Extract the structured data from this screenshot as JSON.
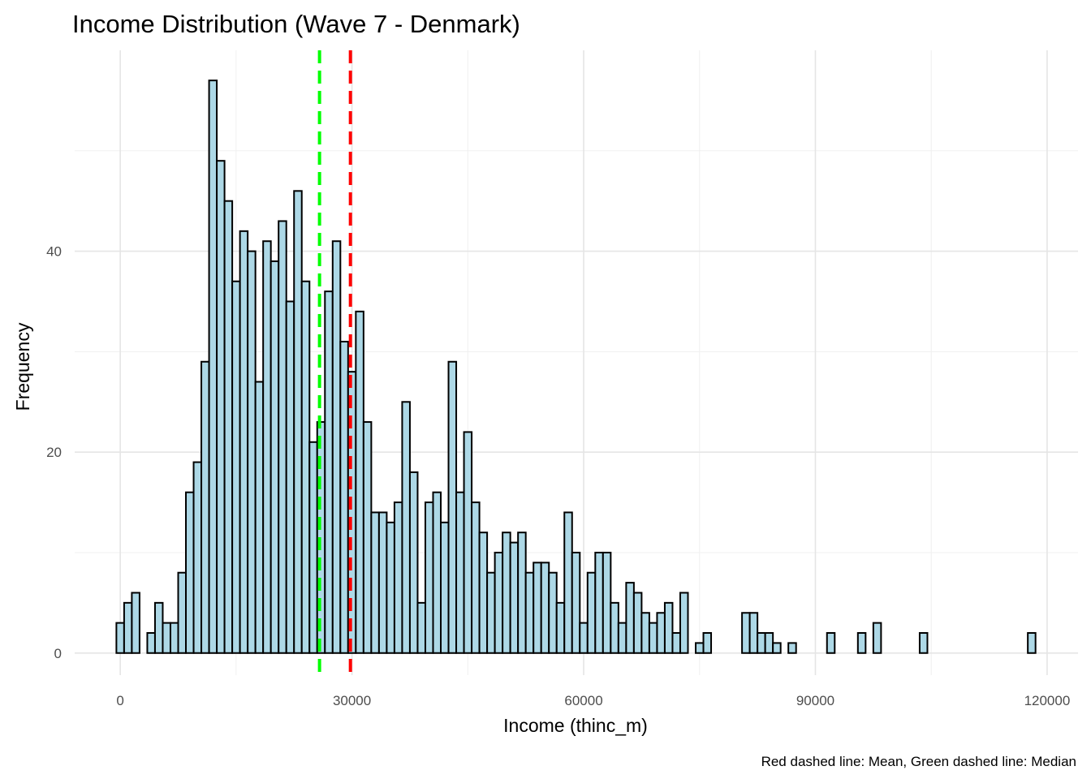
{
  "chart_data": {
    "type": "bar",
    "title": "Income Distribution (Wave 7 - Denmark)",
    "xlabel": "Income (thinc_m)",
    "ylabel": "Frequency",
    "caption": "Red dashed line: Mean, Green dashed line: Median",
    "xlim": [
      -5900,
      124000
    ],
    "ylim": [
      -2.2,
      60
    ],
    "xticks": [
      0,
      30000,
      60000,
      90000,
      120000
    ],
    "xtick_labels": [
      "0",
      "30000",
      "60000",
      "90000",
      "120000"
    ],
    "yticks": [
      0,
      20,
      40
    ],
    "ytick_labels": [
      "0",
      "20",
      "40"
    ],
    "grid": true,
    "bin_start": -500,
    "bin_width": 1000,
    "values": [
      3,
      5,
      6,
      0,
      2,
      5,
      3,
      3,
      8,
      16,
      19,
      29,
      57,
      49,
      45,
      37,
      42,
      40,
      27,
      41,
      39,
      43,
      35,
      46,
      37,
      21,
      23,
      36,
      41,
      31,
      28,
      34,
      23,
      14,
      14,
      13,
      15,
      25,
      18,
      5,
      15,
      16,
      13,
      29,
      16,
      22,
      15,
      12,
      8,
      10,
      12,
      11,
      12,
      8,
      9,
      9,
      8,
      5,
      14,
      10,
      3,
      8,
      10,
      10,
      5,
      3,
      7,
      6,
      4,
      3,
      4,
      5,
      2,
      6,
      0,
      1,
      2,
      0,
      0,
      0,
      0,
      4,
      4,
      2,
      2,
      1,
      0,
      1,
      0,
      0,
      0,
      0,
      2,
      0,
      0,
      0,
      2,
      0,
      3,
      0,
      0,
      0,
      0,
      0,
      2,
      0,
      0,
      0,
      0,
      0,
      0,
      0,
      0,
      0,
      0,
      0,
      0,
      0,
      2
    ],
    "colors": {
      "fill": "#ADD8E6",
      "outline": "#000000",
      "mean": "#FF0000",
      "median": "#00FF00"
    },
    "reference_lines": [
      {
        "name": "Median",
        "x": 25800,
        "color": "#00FF00"
      },
      {
        "name": "Mean",
        "x": 29800,
        "color": "#FF0000"
      }
    ]
  }
}
